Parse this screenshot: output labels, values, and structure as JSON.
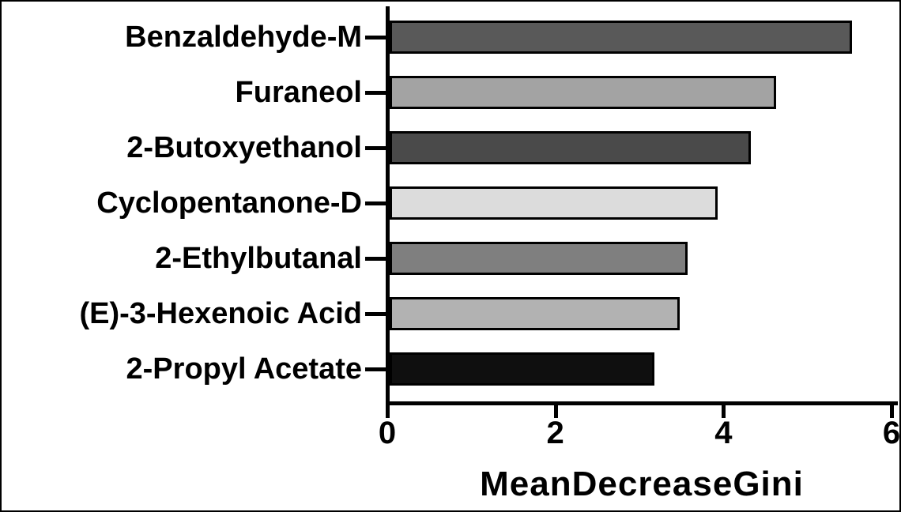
{
  "chart_data": {
    "type": "bar",
    "orientation": "horizontal",
    "title": "",
    "xlabel": "MeanDecreaseGini",
    "ylabel": "",
    "categories": [
      "Benzaldehyde-M",
      "Furaneol",
      "2-Butoxyethanol",
      "Cyclopentanone-D",
      "2-Ethylbutanal",
      "(E)-3-Hexenoic Acid",
      "2-Propyl Acetate"
    ],
    "values": [
      5.5,
      4.6,
      4.3,
      3.9,
      3.55,
      3.45,
      3.15
    ],
    "bar_colors": [
      "#595959",
      "#a3a3a3",
      "#4a4a4a",
      "#dcdcdc",
      "#7f7f7f",
      "#b2b2b2",
      "#0f0f0f"
    ],
    "bar_border_color": "#000000",
    "xlim": [
      0,
      6
    ],
    "x_ticks": [
      0,
      2,
      4,
      6
    ],
    "grid": false,
    "legend": false,
    "background_color": "#ffffff"
  }
}
